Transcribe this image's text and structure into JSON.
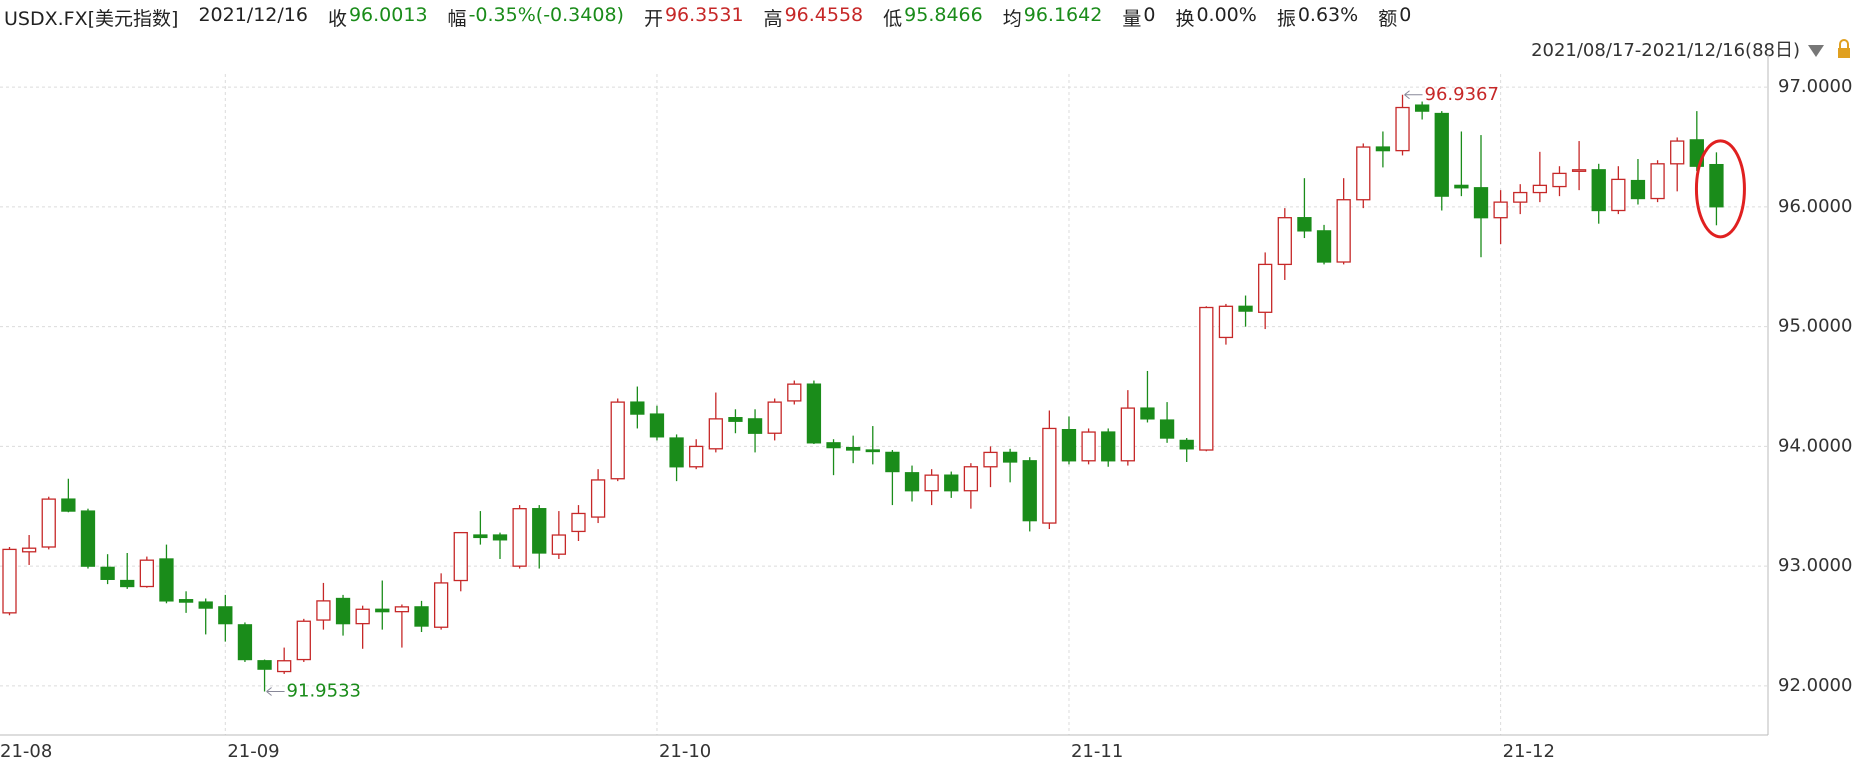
{
  "header": {
    "symbol": "USDX.FX[美元指数]",
    "date": "2021/12/16",
    "fields": [
      {
        "label": "收",
        "color": "#1a8c1a"
      },
      {
        "label": "幅",
        "value": "-0.35%(-0.3408)",
        "color": "#1a8c1a"
      },
      {
        "label": "开",
        "color": "#c62828"
      },
      {
        "label": "高",
        "color": "#c62828"
      },
      {
        "label": "低",
        "color": "#1a8c1a"
      },
      {
        "label": "均",
        "value": 96.1642,
        "color": "#1a8c1a"
      },
      {
        "label": "量",
        "value": 0
      },
      {
        "label": "换",
        "value": "0.00%"
      },
      {
        "label": "振",
        "value": "0.63%"
      },
      {
        "label": "额",
        "value": 0
      }
    ],
    "range": "2021/08/17-2021/12/16(88日)"
  },
  "chart_data": {
    "type": "candlestick",
    "up_color": "#c62828",
    "down_color": "#1a8c1a",
    "grid": true,
    "categories": [
      "21-08",
      null,
      null,
      null,
      null,
      null,
      null,
      null,
      null,
      null,
      null,
      "21-09",
      null,
      null,
      null,
      null,
      null,
      null,
      null,
      null,
      null,
      null,
      null,
      null,
      null,
      null,
      null,
      null,
      null,
      null,
      null,
      null,
      null,
      "21-10",
      null,
      null,
      null,
      null,
      null,
      null,
      null,
      null,
      null,
      null,
      null,
      null,
      null,
      null,
      null,
      null,
      null,
      null,
      null,
      null,
      "21-11",
      null,
      null,
      null,
      null,
      null,
      null,
      null,
      null,
      null,
      null,
      null,
      null,
      null,
      null,
      null,
      null,
      null,
      null,
      null,
      null,
      null,
      "21-12",
      null,
      null,
      null,
      null,
      null,
      null,
      null,
      null,
      null,
      null,
      null
    ],
    "open": [
      92.61,
      93.12,
      93.16,
      93.56,
      93.46,
      92.99,
      92.88,
      92.83,
      93.06,
      92.72,
      92.7,
      92.66,
      92.51,
      92.21,
      92.12,
      92.22,
      92.55,
      92.73,
      92.52,
      92.64,
      92.62,
      92.66,
      92.49,
      92.88,
      93.26,
      93.26,
      93.0,
      93.48,
      93.1,
      93.29,
      93.41,
      93.73,
      94.37,
      94.27,
      94.07,
      93.83,
      93.98,
      94.24,
      94.23,
      94.11,
      94.38,
      94.52,
      94.03,
      93.99,
      93.97,
      93.95,
      93.78,
      93.63,
      93.76,
      93.63,
      93.83,
      93.95,
      93.88,
      93.36,
      94.14,
      93.88,
      94.12,
      93.88,
      94.32,
      94.22,
      94.05,
      93.97,
      94.91,
      95.17,
      95.12,
      95.52,
      95.91,
      95.8,
      95.54,
      96.06,
      96.5,
      96.47,
      96.85,
      96.78,
      96.18,
      96.16,
      95.91,
      96.04,
      96.12,
      96.17,
      96.3,
      96.31,
      95.97,
      96.22,
      96.07,
      96.36,
      96.56,
      96.3531
    ],
    "high": [
      93.16,
      93.26,
      93.58,
      93.73,
      93.48,
      93.1,
      93.11,
      93.08,
      93.18,
      92.79,
      92.73,
      92.76,
      92.53,
      92.22,
      92.32,
      92.56,
      92.86,
      92.76,
      92.67,
      92.88,
      92.68,
      92.71,
      92.94,
      93.28,
      93.46,
      93.28,
      93.51,
      93.51,
      93.46,
      93.51,
      93.81,
      94.4,
      94.5,
      94.34,
      94.1,
      94.06,
      94.45,
      94.31,
      94.31,
      94.4,
      94.55,
      94.55,
      94.06,
      94.09,
      94.17,
      93.97,
      93.84,
      93.81,
      93.79,
      93.86,
      94.0,
      93.98,
      93.91,
      94.3,
      94.25,
      94.15,
      94.15,
      94.47,
      94.63,
      94.37,
      94.07,
      95.17,
      95.19,
      95.26,
      95.62,
      95.99,
      96.24,
      95.85,
      96.24,
      96.53,
      96.63,
      96.9367,
      96.88,
      96.8,
      96.63,
      96.6,
      96.14,
      96.19,
      96.46,
      96.34,
      96.55,
      96.36,
      96.34,
      96.4,
      96.39,
      96.58,
      96.8,
      96.4558
    ],
    "low": [
      92.59,
      93.01,
      93.14,
      93.45,
      92.98,
      92.85,
      92.81,
      92.82,
      92.69,
      92.61,
      92.43,
      92.37,
      92.2,
      91.9533,
      92.1,
      92.2,
      92.47,
      92.42,
      92.31,
      92.47,
      92.32,
      92.45,
      92.47,
      92.79,
      93.18,
      93.06,
      92.98,
      92.98,
      93.06,
      93.21,
      93.36,
      93.71,
      94.15,
      94.05,
      93.71,
      93.81,
      93.95,
      94.11,
      93.95,
      94.05,
      94.35,
      94.02,
      93.76,
      93.86,
      93.85,
      93.51,
      93.54,
      93.51,
      93.57,
      93.48,
      93.66,
      93.7,
      93.29,
      93.31,
      93.85,
      93.85,
      93.83,
      93.84,
      94.2,
      94.03,
      93.87,
      93.96,
      94.85,
      95.0,
      94.98,
      95.39,
      95.74,
      95.52,
      95.52,
      95.99,
      96.33,
      96.43,
      96.73,
      95.97,
      96.09,
      95.58,
      95.69,
      95.94,
      96.04,
      96.09,
      96.14,
      95.86,
      95.94,
      96.02,
      96.04,
      96.13,
      96.3,
      95.8466
    ],
    "close": [
      93.14,
      93.15,
      93.56,
      93.46,
      93.0,
      92.89,
      92.83,
      93.05,
      92.71,
      92.7,
      92.65,
      92.52,
      92.22,
      92.14,
      92.21,
      92.54,
      92.71,
      92.52,
      92.64,
      92.62,
      92.66,
      92.5,
      92.86,
      93.28,
      93.24,
      93.22,
      93.48,
      93.11,
      93.26,
      93.44,
      93.72,
      94.37,
      94.27,
      94.08,
      93.83,
      94.0,
      94.23,
      94.21,
      94.11,
      94.37,
      94.52,
      94.03,
      93.99,
      93.97,
      93.96,
      93.79,
      93.63,
      93.76,
      93.63,
      93.83,
      93.95,
      93.87,
      93.38,
      94.15,
      93.88,
      94.12,
      93.88,
      94.32,
      94.23,
      94.07,
      93.98,
      95.16,
      95.17,
      95.13,
      95.52,
      95.91,
      95.8,
      95.54,
      96.06,
      96.5,
      96.47,
      96.83,
      96.8,
      96.09,
      96.16,
      95.91,
      96.04,
      96.12,
      96.18,
      96.28,
      96.31,
      95.97,
      96.23,
      96.07,
      96.36,
      96.55,
      96.34,
      96.0013
    ],
    "ylim": [
      91.59,
      97.11
    ],
    "yticks": [
      {
        "value": 92,
        "label": "92.0000"
      },
      {
        "value": 93,
        "label": "93.0000"
      },
      {
        "value": 94,
        "label": "94.0000"
      },
      {
        "value": 95,
        "label": "95.0000"
      },
      {
        "value": 96,
        "label": "96.0000"
      },
      {
        "value": 97,
        "label": "97.0000"
      }
    ]
  }
}
